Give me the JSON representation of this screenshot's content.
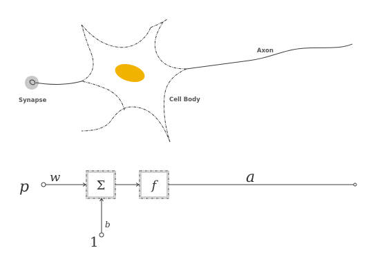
{
  "neuron": {
    "labels": {
      "synapse": "Synapse",
      "cell_body": "Cell Body",
      "axon": "Axon"
    },
    "nucleus_color": "#f2b200",
    "synapse_halo_color": "#c8c8c8"
  },
  "perceptron": {
    "input": "p",
    "weight": "w",
    "sum_symbol": "Σ",
    "transfer_symbol": "f",
    "output": "a",
    "bias": "b",
    "bias_input": "1"
  }
}
